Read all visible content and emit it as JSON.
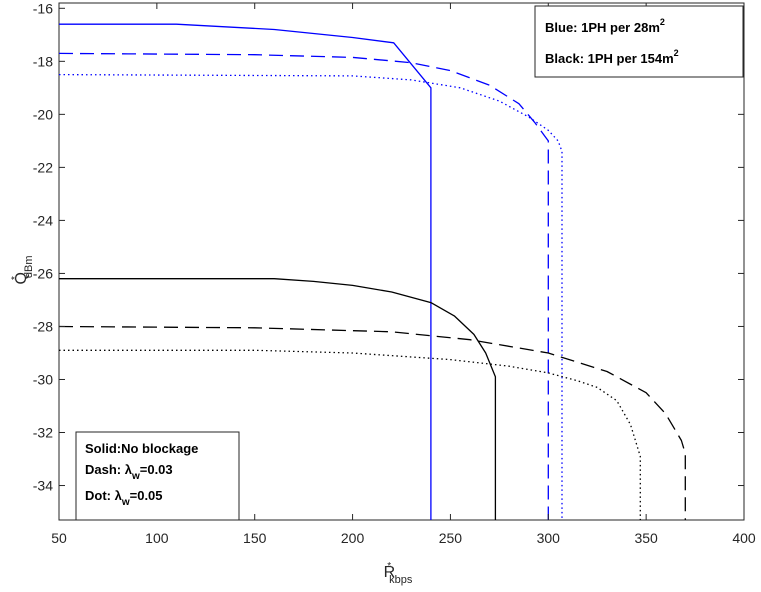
{
  "chart_data": {
    "type": "line",
    "xlabel_main": "R",
    "xlabel_sup": "*",
    "xlabel_sub": "kbps",
    "ylabel_main": "Q",
    "ylabel_sup": "*",
    "ylabel_sub": "dBm",
    "xlim": [
      50,
      400
    ],
    "ylim": [
      -35.3,
      -15.8
    ],
    "xticks": [
      "50",
      "100",
      "150",
      "200",
      "250",
      "300",
      "350",
      "400"
    ],
    "yticks": [
      "-16",
      "-18",
      "-20",
      "-22",
      "-24",
      "-26",
      "-28",
      "-30",
      "-32",
      "-34"
    ],
    "grid": false,
    "series": [
      {
        "color": "#0000ff",
        "style": "solid",
        "x": [
          50,
          110,
          160,
          200,
          221,
          240,
          240
        ],
        "y": [
          -16.6,
          -16.6,
          -16.8,
          -17.1,
          -17.3,
          -19.0,
          -35.3
        ]
      },
      {
        "color": "#0000ff",
        "style": "dash",
        "x": [
          50,
          150,
          200,
          230,
          250,
          270,
          285,
          293,
          298,
          300,
          300
        ],
        "y": [
          -17.7,
          -17.75,
          -17.85,
          -18.05,
          -18.35,
          -18.9,
          -19.6,
          -20.3,
          -20.8,
          -21.0,
          -35.3
        ]
      },
      {
        "color": "#0000ff",
        "style": "dot",
        "x": [
          50,
          200,
          230,
          255,
          275,
          290,
          300,
          305,
          307,
          307
        ],
        "y": [
          -18.5,
          -18.55,
          -18.7,
          -19.0,
          -19.5,
          -20.1,
          -20.6,
          -21.0,
          -21.4,
          -35.3
        ]
      },
      {
        "color": "#000000",
        "style": "solid",
        "x": [
          50,
          160,
          180,
          200,
          220,
          240,
          252,
          262,
          268,
          273,
          273
        ],
        "y": [
          -26.2,
          -26.2,
          -26.3,
          -26.45,
          -26.7,
          -27.1,
          -27.6,
          -28.3,
          -29.0,
          -29.9,
          -35.3
        ]
      },
      {
        "color": "#000000",
        "style": "dash",
        "x": [
          50,
          150,
          220,
          260,
          300,
          330,
          350,
          360,
          368,
          370,
          370
        ],
        "y": [
          -28.0,
          -28.05,
          -28.2,
          -28.5,
          -29.0,
          -29.7,
          -30.5,
          -31.3,
          -32.3,
          -32.8,
          -35.3
        ]
      },
      {
        "color": "#000000",
        "style": "dot",
        "x": [
          50,
          150,
          200,
          250,
          280,
          300,
          315,
          325,
          335,
          342,
          347,
          347
        ],
        "y": [
          -28.9,
          -28.9,
          -29.0,
          -29.25,
          -29.5,
          -29.75,
          -30.05,
          -30.3,
          -30.8,
          -31.7,
          -32.9,
          -35.3
        ]
      }
    ],
    "legend_colors": {
      "title_lines": [
        {
          "prefix": "Blue: 1PH per 28m",
          "sup": "2"
        },
        {
          "prefix": "Black: 1PH per 154m",
          "sup": "2"
        }
      ],
      "placement": "top-right"
    },
    "legend_styles": {
      "lines": [
        {
          "text": "Solid:No blockage",
          "sub": "",
          "suffix": ""
        },
        {
          "text": "Dash: λ",
          "sub": "w",
          "suffix": "=0.03"
        },
        {
          "text": "Dot: λ",
          "sub": "w",
          "suffix": "=0.05"
        }
      ],
      "placement": "bottom-left"
    }
  }
}
